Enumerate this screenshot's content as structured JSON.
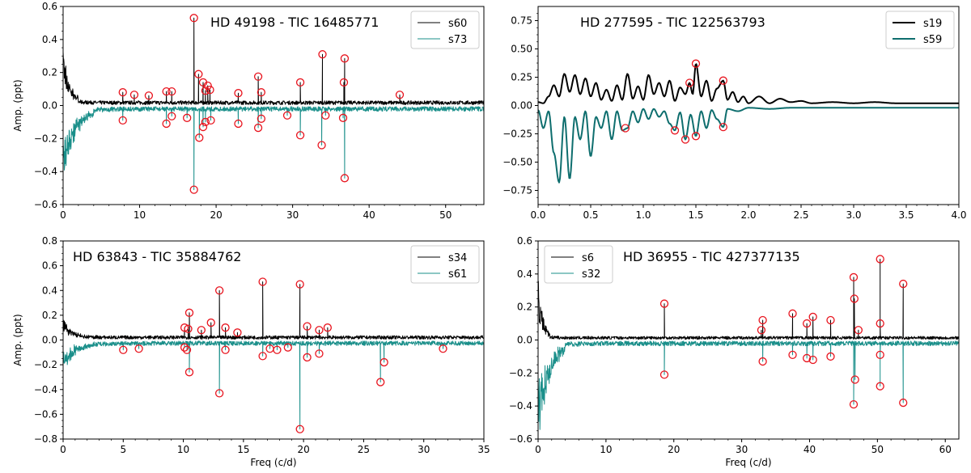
{
  "chart_data": [
    {
      "type": "line",
      "title": "HD 49198 - TIC 16485771",
      "xlabel": "",
      "ylabel": "Amp. (ppt)",
      "xlim": [
        0,
        55
      ],
      "ylim": [
        -0.6,
        0.6
      ],
      "xticks": [
        0,
        10,
        20,
        30,
        40,
        50
      ],
      "yticks": [
        -0.6,
        -0.4,
        -0.2,
        0.0,
        0.2,
        0.4,
        0.6
      ],
      "legend_position": "top-right",
      "colors": {
        "pos": "#000000",
        "neg": "#1a8f8a",
        "marker": "#e8141e"
      },
      "series": [
        {
          "name": "s60",
          "noise": 0.018,
          "lowfreq_peak": 0.3,
          "lowfreq_width": 0.8,
          "peaks": [
            [
              7.8,
              0.08
            ],
            [
              9.3,
              0.065
            ],
            [
              11.2,
              0.06
            ],
            [
              13.5,
              0.085
            ],
            [
              14.2,
              0.085
            ],
            [
              17.1,
              0.53
            ],
            [
              17.7,
              0.19
            ],
            [
              18.3,
              0.14
            ],
            [
              18.6,
              0.09
            ],
            [
              18.9,
              0.12
            ],
            [
              19.2,
              0.095
            ],
            [
              22.9,
              0.075
            ],
            [
              25.5,
              0.175
            ],
            [
              25.9,
              0.08
            ],
            [
              31.0,
              0.14
            ],
            [
              33.9,
              0.31
            ],
            [
              36.8,
              0.285
            ],
            [
              36.7,
              0.14
            ],
            [
              44.0,
              0.065
            ]
          ]
        },
        {
          "name": "s73",
          "noise": 0.022,
          "lowfreq_peak": 0.4,
          "lowfreq_width": 1.6,
          "peaks": [
            [
              7.8,
              0.09
            ],
            [
              13.5,
              0.11
            ],
            [
              14.2,
              0.065
            ],
            [
              16.2,
              0.075
            ],
            [
              17.1,
              0.51
            ],
            [
              17.8,
              0.195
            ],
            [
              18.3,
              0.13
            ],
            [
              18.6,
              0.1
            ],
            [
              19.3,
              0.09
            ],
            [
              22.9,
              0.11
            ],
            [
              25.5,
              0.135
            ],
            [
              25.9,
              0.08
            ],
            [
              29.3,
              0.06
            ],
            [
              31.0,
              0.18
            ],
            [
              33.8,
              0.24
            ],
            [
              34.3,
              0.06
            ],
            [
              36.8,
              0.44
            ],
            [
              36.6,
              0.075
            ]
          ]
        }
      ]
    },
    {
      "type": "line",
      "title": "HD 277595 - TIC 122563793",
      "xlabel": "",
      "ylabel": "",
      "xlim": [
        0,
        4.0
      ],
      "ylim": [
        -0.875,
        0.875
      ],
      "xticks": [
        0.0,
        0.5,
        1.0,
        1.5,
        2.0,
        2.5,
        3.0,
        3.5,
        4.0
      ],
      "yticks": [
        -0.75,
        -0.5,
        -0.25,
        0.0,
        0.25,
        0.5,
        0.75
      ],
      "legend_position": "top-right",
      "colors": {
        "pos": "#000000",
        "neg": "#0e6e6e",
        "marker": "#e8141e"
      },
      "series": [
        {
          "name": "s19",
          "profile": [
            [
              0,
              0.03
            ],
            [
              0.05,
              0.02
            ],
            [
              0.1,
              0.08
            ],
            [
              0.15,
              0.18
            ],
            [
              0.2,
              0.08
            ],
            [
              0.25,
              0.28
            ],
            [
              0.3,
              0.12
            ],
            [
              0.35,
              0.27
            ],
            [
              0.4,
              0.1
            ],
            [
              0.45,
              0.24
            ],
            [
              0.5,
              0.08
            ],
            [
              0.55,
              0.2
            ],
            [
              0.6,
              0.05
            ],
            [
              0.65,
              0.14
            ],
            [
              0.7,
              0.04
            ],
            [
              0.75,
              0.18
            ],
            [
              0.8,
              0.05
            ],
            [
              0.85,
              0.28
            ],
            [
              0.9,
              0.06
            ],
            [
              0.95,
              0.17
            ],
            [
              1.0,
              0.05
            ],
            [
              1.05,
              0.27
            ],
            [
              1.1,
              0.1
            ],
            [
              1.15,
              0.2
            ],
            [
              1.2,
              0.08
            ],
            [
              1.25,
              0.22
            ],
            [
              1.3,
              0.04
            ],
            [
              1.35,
              0.16
            ],
            [
              1.4,
              0.1
            ],
            [
              1.44,
              0.2
            ],
            [
              1.47,
              0.1
            ],
            [
              1.5,
              0.37
            ],
            [
              1.55,
              0.08
            ],
            [
              1.6,
              0.22
            ],
            [
              1.65,
              0.04
            ],
            [
              1.7,
              0.15
            ],
            [
              1.76,
              0.22
            ],
            [
              1.8,
              0.05
            ],
            [
              1.85,
              0.12
            ],
            [
              1.9,
              0.03
            ],
            [
              1.95,
              0.08
            ],
            [
              2.0,
              0.02
            ],
            [
              2.1,
              0.08
            ],
            [
              2.2,
              0.02
            ],
            [
              2.3,
              0.06
            ],
            [
              2.4,
              0.03
            ],
            [
              2.5,
              0.04
            ],
            [
              2.6,
              0.02
            ],
            [
              2.8,
              0.03
            ],
            [
              3.0,
              0.02
            ],
            [
              3.2,
              0.03
            ],
            [
              3.4,
              0.02
            ],
            [
              3.6,
              0.02
            ],
            [
              3.8,
              0.02
            ],
            [
              4.0,
              0.02
            ]
          ],
          "peaks": [
            [
              1.44,
              0.2
            ],
            [
              1.5,
              0.37
            ],
            [
              1.76,
              0.22
            ]
          ]
        },
        {
          "name": "s59",
          "profile": [
            [
              0,
              -0.04
            ],
            [
              0.05,
              -0.2
            ],
            [
              0.1,
              -0.05
            ],
            [
              0.15,
              -0.42
            ],
            [
              0.2,
              -0.68
            ],
            [
              0.25,
              -0.1
            ],
            [
              0.3,
              -0.65
            ],
            [
              0.35,
              -0.1
            ],
            [
              0.4,
              -0.3
            ],
            [
              0.45,
              -0.05
            ],
            [
              0.5,
              -0.45
            ],
            [
              0.55,
              -0.1
            ],
            [
              0.6,
              -0.2
            ],
            [
              0.65,
              -0.05
            ],
            [
              0.7,
              -0.3
            ],
            [
              0.75,
              -0.05
            ],
            [
              0.8,
              -0.22
            ],
            [
              0.85,
              -0.2
            ],
            [
              0.9,
              -0.05
            ],
            [
              0.95,
              -0.15
            ],
            [
              1.0,
              -0.03
            ],
            [
              1.05,
              -0.12
            ],
            [
              1.1,
              -0.03
            ],
            [
              1.15,
              -0.1
            ],
            [
              1.2,
              -0.05
            ],
            [
              1.25,
              -0.16
            ],
            [
              1.3,
              -0.22
            ],
            [
              1.35,
              -0.06
            ],
            [
              1.4,
              -0.3
            ],
            [
              1.45,
              -0.08
            ],
            [
              1.5,
              -0.27
            ],
            [
              1.55,
              -0.05
            ],
            [
              1.6,
              -0.2
            ],
            [
              1.65,
              -0.04
            ],
            [
              1.7,
              -0.12
            ],
            [
              1.76,
              -0.19
            ],
            [
              1.8,
              -0.03
            ],
            [
              1.9,
              -0.05
            ],
            [
              2.0,
              -0.02
            ],
            [
              2.2,
              -0.03
            ],
            [
              2.4,
              -0.02
            ],
            [
              2.6,
              -0.02
            ],
            [
              3.0,
              -0.02
            ],
            [
              3.5,
              -0.02
            ],
            [
              4.0,
              -0.02
            ]
          ],
          "peaks": [
            [
              0.83,
              0.2
            ],
            [
              1.3,
              0.22
            ],
            [
              1.4,
              0.3
            ],
            [
              1.5,
              0.27
            ],
            [
              1.76,
              0.19
            ]
          ]
        }
      ]
    },
    {
      "type": "line",
      "title": "HD 63843 - TIC 35884762",
      "xlabel": "Freq (c/d)",
      "ylabel": "Amp. (ppt)",
      "xlim": [
        0,
        35
      ],
      "ylim": [
        -0.8,
        0.8
      ],
      "xticks": [
        0,
        5,
        10,
        15,
        20,
        25,
        30,
        35
      ],
      "yticks": [
        -0.8,
        -0.6,
        -0.4,
        -0.2,
        0.0,
        0.2,
        0.4,
        0.6,
        0.8
      ],
      "legend_position": "top-right",
      "colors": {
        "pos": "#000000",
        "neg": "#1a8f8a",
        "marker": "#e8141e"
      },
      "series": [
        {
          "name": "s34",
          "noise": 0.022,
          "lowfreq_peak": 0.12,
          "lowfreq_width": 0.6,
          "peaks": [
            [
              10.1,
              0.1
            ],
            [
              10.4,
              0.09
            ],
            [
              10.5,
              0.22
            ],
            [
              11.5,
              0.08
            ],
            [
              12.3,
              0.14
            ],
            [
              13.0,
              0.4
            ],
            [
              13.5,
              0.1
            ],
            [
              14.5,
              0.06
            ],
            [
              16.6,
              0.47
            ],
            [
              19.7,
              0.45
            ],
            [
              20.3,
              0.11
            ],
            [
              21.3,
              0.08
            ],
            [
              22.0,
              0.1
            ]
          ]
        },
        {
          "name": "s61",
          "noise": 0.028,
          "lowfreq_peak": 0.18,
          "lowfreq_width": 1.0,
          "peaks": [
            [
              5.0,
              0.08
            ],
            [
              6.3,
              0.07
            ],
            [
              10.1,
              0.06
            ],
            [
              10.3,
              0.08
            ],
            [
              10.5,
              0.26
            ],
            [
              13.0,
              0.43
            ],
            [
              13.5,
              0.08
            ],
            [
              16.6,
              0.13
            ],
            [
              17.2,
              0.07
            ],
            [
              17.8,
              0.08
            ],
            [
              18.7,
              0.06
            ],
            [
              19.7,
              0.72
            ],
            [
              20.3,
              0.14
            ],
            [
              21.3,
              0.11
            ],
            [
              26.4,
              0.34
            ],
            [
              26.7,
              0.18
            ],
            [
              31.6,
              0.07
            ]
          ]
        }
      ]
    },
    {
      "type": "line",
      "title": "HD 36955 - TIC 427377135",
      "xlabel": "Freq (c/d)",
      "ylabel": "",
      "xlim": [
        0,
        62
      ],
      "ylim": [
        -0.6,
        0.6
      ],
      "xticks": [
        0,
        10,
        20,
        30,
        40,
        50,
        60
      ],
      "yticks": [
        -0.6,
        -0.4,
        -0.2,
        0.0,
        0.2,
        0.4,
        0.6
      ],
      "legend_position": "top-left",
      "colors": {
        "pos": "#000000",
        "neg": "#1a8f8a",
        "marker": "#e8141e"
      },
      "series": [
        {
          "name": "s6",
          "noise": 0.014,
          "lowfreq_peak": 0.32,
          "lowfreq_width": 0.7,
          "peaks": [
            [
              18.6,
              0.22
            ],
            [
              32.9,
              0.06
            ],
            [
              33.1,
              0.12
            ],
            [
              37.5,
              0.16
            ],
            [
              39.6,
              0.1
            ],
            [
              40.5,
              0.14
            ],
            [
              43.1,
              0.12
            ],
            [
              46.5,
              0.38
            ],
            [
              46.6,
              0.25
            ],
            [
              47.2,
              0.06
            ],
            [
              50.4,
              0.49
            ],
            [
              50.4,
              0.1
            ],
            [
              53.8,
              0.34
            ]
          ]
        },
        {
          "name": "s32",
          "noise": 0.022,
          "lowfreq_peak": 0.58,
          "lowfreq_width": 1.6,
          "peaks": [
            [
              18.6,
              0.21
            ],
            [
              33.1,
              0.13
            ],
            [
              37.5,
              0.09
            ],
            [
              39.6,
              0.11
            ],
            [
              40.5,
              0.12
            ],
            [
              43.1,
              0.1
            ],
            [
              46.5,
              0.39
            ],
            [
              46.7,
              0.24
            ],
            [
              50.4,
              0.28
            ],
            [
              50.4,
              0.09
            ],
            [
              53.8,
              0.38
            ]
          ]
        }
      ]
    }
  ]
}
